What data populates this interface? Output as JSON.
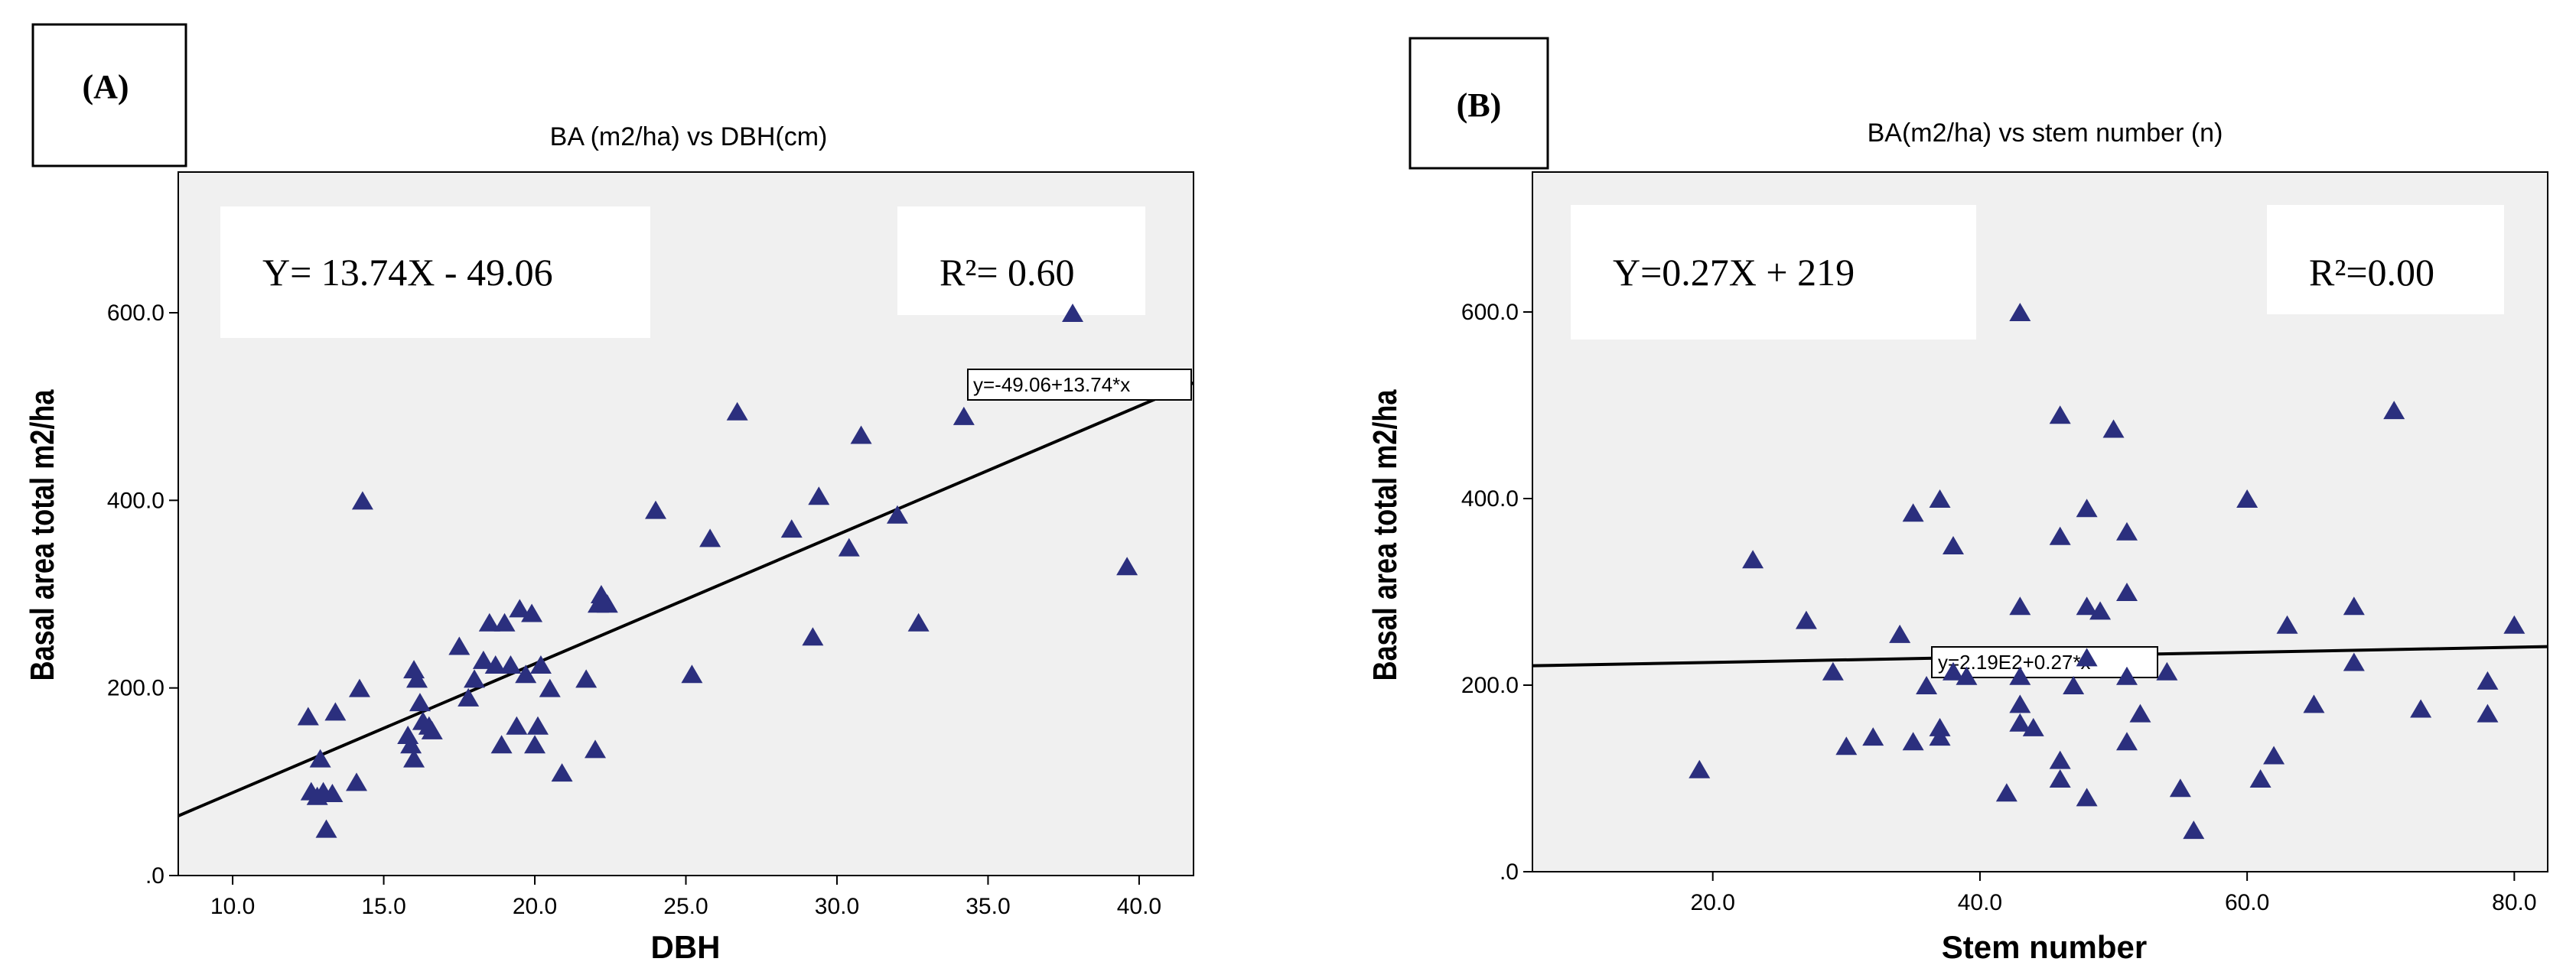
{
  "chart_data": [
    {
      "type": "scatter",
      "panel_label": "(A)",
      "title": "BA (m2/ha) vs DBH(cm)",
      "xlabel": "DBH",
      "ylabel": "Basal area total m2/ha",
      "xlim": [
        8.2,
        41.8
      ],
      "ylim": [
        0,
        750
      ],
      "xticks": [
        10,
        15,
        20,
        25,
        30,
        35,
        40
      ],
      "xtick_labels": [
        "10.0",
        "15.0",
        "20.0",
        "25.0",
        "30.0",
        "35.0",
        "40.0"
      ],
      "yticks": [
        0,
        200,
        400,
        600
      ],
      "ytick_labels": [
        ".0",
        "200.0",
        "400.0",
        "600.0"
      ],
      "equation_box": "Y= 13.74X - 49.06",
      "r2_box": "R²= 0.60",
      "fit_label": "y=-49.06+13.74*x",
      "fit": {
        "intercept": -49.06,
        "slope": 13.74
      },
      "marker_color": "#2b2f7e",
      "background_color": "#f0f0f0",
      "x": [
        12.5,
        12.6,
        12.8,
        12.9,
        13.0,
        13.1,
        13.3,
        13.4,
        14.1,
        14.2,
        14.3,
        15.8,
        15.9,
        16.0,
        16.0,
        16.1,
        16.2,
        16.3,
        16.5,
        16.6,
        17.5,
        17.8,
        18.0,
        18.3,
        18.5,
        18.7,
        18.9,
        19.0,
        19.2,
        19.4,
        19.5,
        19.7,
        19.9,
        20.0,
        20.1,
        20.2,
        20.5,
        20.9,
        21.7,
        22.0,
        22.1,
        22.2,
        22.4,
        24.0,
        25.2,
        25.8,
        26.7,
        28.5,
        29.2,
        29.4,
        30.4,
        30.8,
        32.0,
        32.7,
        34.2,
        37.8,
        39.6
      ],
      "y": [
        170,
        90,
        85,
        125,
        90,
        50,
        88,
        175,
        100,
        200,
        400,
        150,
        140,
        125,
        220,
        210,
        185,
        165,
        160,
        155,
        245,
        190,
        210,
        230,
        270,
        225,
        140,
        270,
        225,
        160,
        285,
        215,
        280,
        140,
        160,
        225,
        200,
        110,
        210,
        135,
        290,
        300,
        290,
        390,
        215,
        360,
        495,
        370,
        255,
        405,
        350,
        470,
        385,
        270,
        490,
        600,
        330
      ]
    },
    {
      "type": "scatter",
      "panel_label": "(B)",
      "title": "BA(m2/ha) vs stem number (n)",
      "xlabel": "Stem number",
      "ylabel": "Basal area total m2/ha",
      "xlim": [
        6.5,
        82.5
      ],
      "ylim": [
        0,
        750
      ],
      "xticks": [
        20,
        40,
        60,
        80
      ],
      "xtick_labels": [
        "20.0",
        "40.0",
        "60.0",
        "80.0"
      ],
      "yticks": [
        0,
        200,
        400,
        600
      ],
      "ytick_labels": [
        ".0",
        "200.0",
        "400.0",
        "600.0"
      ],
      "equation_box": "Y=0.27X + 219",
      "r2_box": "R²=0.00",
      "fit_label": "y=2.19E2+0.27*x",
      "fit": {
        "intercept": 219,
        "slope": 0.27
      },
      "marker_color": "#2b2f7e",
      "background_color": "#f0f0f0",
      "x": [
        19,
        23,
        27,
        29,
        30,
        32,
        34,
        35,
        35,
        36,
        37,
        37,
        37,
        38,
        38,
        39,
        42,
        43,
        43,
        43,
        43,
        43,
        44,
        46,
        46,
        46,
        46,
        47,
        48,
        48,
        48,
        48,
        49,
        50,
        51,
        51,
        51,
        51,
        52,
        54,
        55,
        56,
        60,
        61,
        62,
        63,
        65,
        68,
        68,
        71,
        73,
        78,
        78,
        80
      ],
      "y": [
        110,
        335,
        270,
        215,
        135,
        145,
        255,
        385,
        140,
        200,
        400,
        155,
        145,
        350,
        215,
        210,
        85,
        600,
        285,
        180,
        160,
        210,
        155,
        490,
        360,
        120,
        100,
        200,
        80,
        390,
        285,
        230,
        280,
        475,
        365,
        300,
        140,
        210,
        170,
        215,
        90,
        45,
        400,
        100,
        125,
        265,
        180,
        285,
        225,
        495,
        175,
        205,
        170,
        265
      ]
    }
  ]
}
